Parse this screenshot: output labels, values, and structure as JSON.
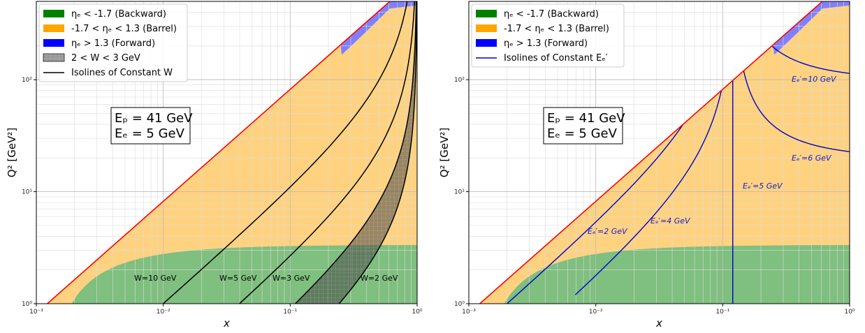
{
  "chart_data": [
    {
      "type": "area",
      "xlabel": "x",
      "ylabel": "Q² [GeV²]",
      "xscale": "log",
      "yscale": "log",
      "xlim": [
        0.001,
        1
      ],
      "ylim": [
        1,
        500
      ],
      "x_ticks": [
        "10⁻³",
        "10⁻²",
        "10⁻¹",
        "10⁰"
      ],
      "y_ticks": [
        "10⁰",
        "10¹",
        "10²"
      ],
      "grid": true,
      "legend_position": "top-left",
      "legend": [
        {
          "label": "ηₑ < -1.7 (Backward)",
          "color": "#008000",
          "kind": "patch"
        },
        {
          "label": "-1.7 < ηₑ < 1.3 (Barrel)",
          "color": "#FFA500",
          "kind": "patch"
        },
        {
          "label": "ηₑ > 1.3 (Forward)",
          "color": "#0000FF",
          "kind": "patch"
        },
        {
          "label": "2 < W < 3 GeV",
          "color": "#808080",
          "kind": "hatch"
        },
        {
          "label": "Isolines of Constant W",
          "color": "#000000",
          "kind": "line"
        }
      ],
      "info_lines": [
        "Eₚ = 41 GeV",
        "Eₑ = 5 GeV"
      ],
      "beam": {
        "Ep": 41,
        "Ee": 5
      },
      "isolines": [
        {
          "label": "W=10 GeV",
          "W": 10
        },
        {
          "label": "W=5 GeV",
          "W": 5
        },
        {
          "label": "W=3 GeV",
          "W": 3
        },
        {
          "label": "W=2 GeV",
          "W": 2
        }
      ],
      "band": {
        "Wmin": 2,
        "Wmax": 3
      }
    },
    {
      "type": "area",
      "xlabel": "x",
      "ylabel": "Q² [GeV²]",
      "xscale": "log",
      "yscale": "log",
      "xlim": [
        0.001,
        1
      ],
      "ylim": [
        1,
        500
      ],
      "x_ticks": [
        "10⁻³",
        "10⁻²",
        "10⁻¹",
        "10⁰"
      ],
      "y_ticks": [
        "10⁰",
        "10¹",
        "10²"
      ],
      "grid": true,
      "legend_position": "top-left",
      "legend": [
        {
          "label": "ηₑ < -1.7 (Backward)",
          "color": "#008000",
          "kind": "patch"
        },
        {
          "label": "-1.7 < ηₑ < 1.3 (Barrel)",
          "color": "#FFA500",
          "kind": "patch"
        },
        {
          "label": "ηₑ > 1.3 (Forward)",
          "color": "#0000FF",
          "kind": "patch"
        },
        {
          "label": "Isolines of Constant Eₑ′",
          "color": "#0000CC",
          "kind": "line"
        }
      ],
      "info_lines": [
        "Eₚ = 41 GeV",
        "Eₑ = 5 GeV"
      ],
      "beam": {
        "Ep": 41,
        "Ee": 5
      },
      "isolines": [
        {
          "label": "Eₑ′=2 GeV",
          "E": 2
        },
        {
          "label": "Eₑ′=4 GeV",
          "E": 4
        },
        {
          "label": "Eₑ′=5 GeV",
          "E": 5
        },
        {
          "label": "Eₑ′=6 GeV",
          "E": 6
        },
        {
          "label": "Eₑ′=10 GeV",
          "E": 10
        }
      ]
    }
  ],
  "colors": {
    "backward": "#7fbf7f",
    "barrel": "#ffd280",
    "forward": "#8080ff",
    "kinematic_limit": "#ff0000",
    "isoline_w": "#000000",
    "isoline_e": "#0000cc"
  }
}
